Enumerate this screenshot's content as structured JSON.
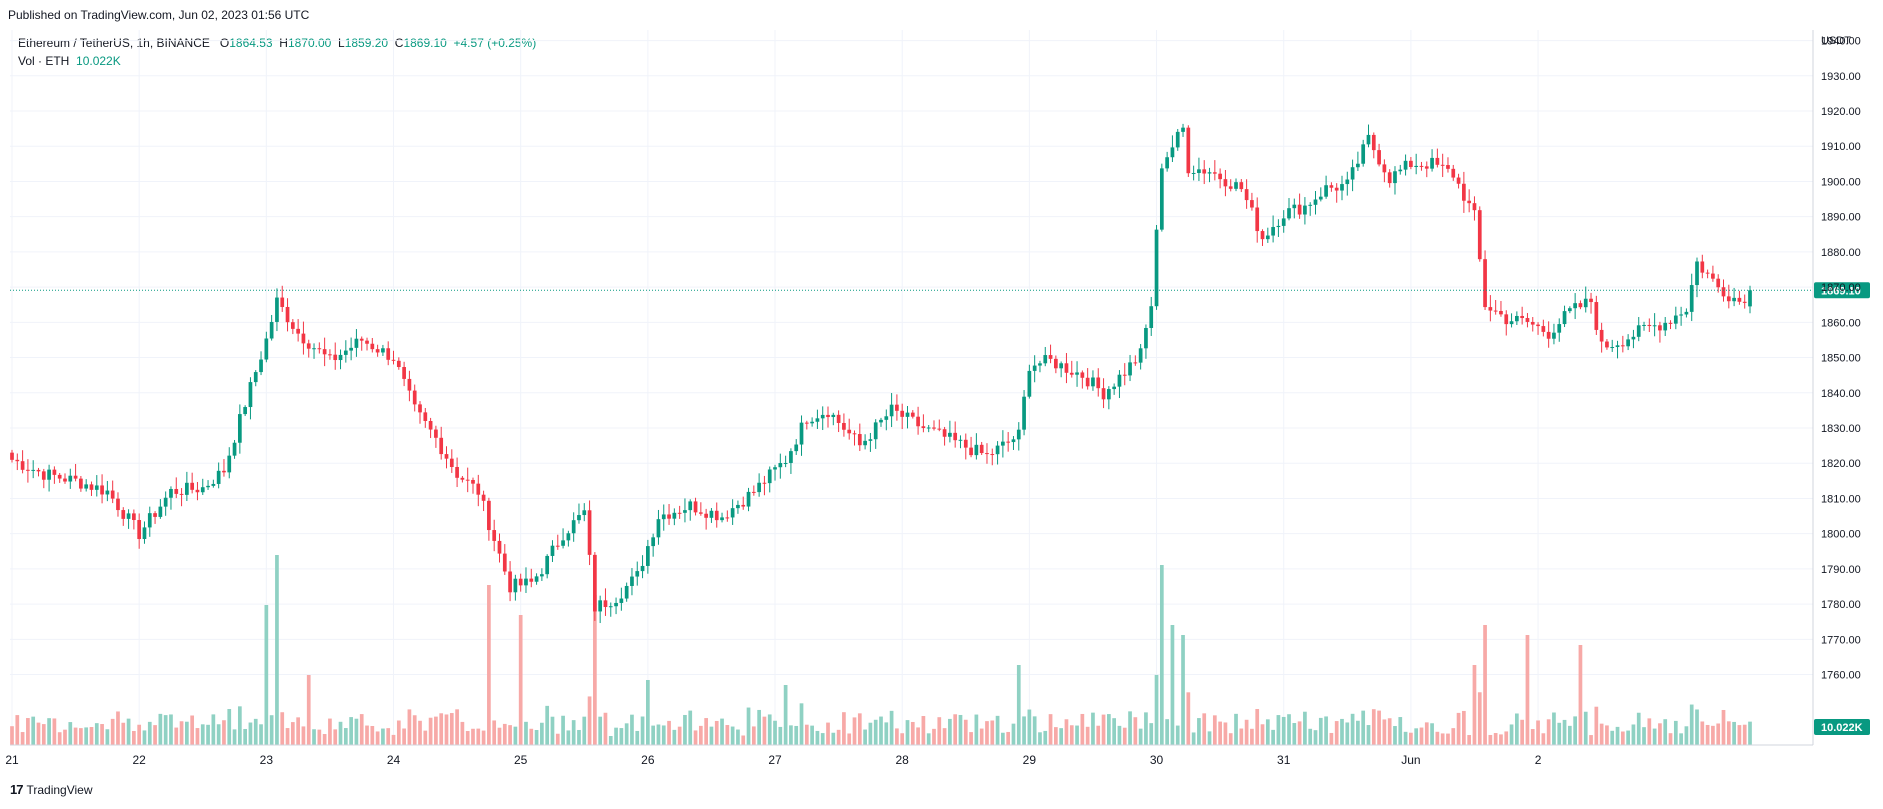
{
  "header": {
    "published": "Published on TradingView.com, Jun 02, 2023 01:56 UTC"
  },
  "legend": {
    "symbol": "Ethereum / TetherUS, 1h, BINANCE",
    "o_label": "O",
    "o_value": "1864.53",
    "h_label": "H",
    "h_value": "1870.00",
    "l_label": "L",
    "l_value": "1859.20",
    "c_label": "C",
    "c_value": "1869.10",
    "change": "+4.57 (+0.25%)",
    "vol_label": "Vol · ETH",
    "vol_value": "10.022K"
  },
  "footer": {
    "brand": "TradingView",
    "logo": "17"
  },
  "colors": {
    "up": "#089981",
    "down": "#f23645",
    "up_vol": "#8fd1c3",
    "down_vol": "#f7a9a7",
    "grid": "#f0f3fa",
    "text": "#131722"
  },
  "chart_data": {
    "type": "candlestick",
    "title": "Ethereum / TetherUS, 1h, BINANCE",
    "y_unit": "USDT",
    "ylim": [
      1740,
      1943
    ],
    "y_ticks": [
      "1940.00",
      "1930.00",
      "1920.00",
      "1910.00",
      "1900.00",
      "1890.00",
      "1880.00",
      "1870.00",
      "1860.00",
      "1850.00",
      "1840.00",
      "1830.00",
      "1820.00",
      "1810.00",
      "1800.00",
      "1790.00",
      "1780.00",
      "1770.00",
      "1760.00"
    ],
    "x_ticks": [
      "21",
      "22",
      "23",
      "24",
      "25",
      "26",
      "27",
      "28",
      "29",
      "30",
      "31",
      "Jun",
      "2"
    ],
    "last_price": "1869.10",
    "last_volume": "10.022K",
    "grid": true,
    "close_path": [
      [
        0,
        1821
      ],
      [
        6,
        1817
      ],
      [
        12,
        1815
      ],
      [
        18,
        1812
      ],
      [
        24,
        1800
      ],
      [
        30,
        1812
      ],
      [
        36,
        1813
      ],
      [
        40,
        1818
      ],
      [
        44,
        1837
      ],
      [
        48,
        1855
      ],
      [
        50,
        1866
      ],
      [
        54,
        1857
      ],
      [
        60,
        1849
      ],
      [
        66,
        1855
      ],
      [
        72,
        1850
      ],
      [
        76,
        1835
      ],
      [
        80,
        1827
      ],
      [
        84,
        1817
      ],
      [
        88,
        1812
      ],
      [
        90,
        1803
      ],
      [
        94,
        1785
      ],
      [
        98,
        1786
      ],
      [
        100,
        1790
      ],
      [
        104,
        1800
      ],
      [
        108,
        1806
      ],
      [
        110,
        1779
      ],
      [
        114,
        1782
      ],
      [
        118,
        1788
      ],
      [
        122,
        1805
      ],
      [
        128,
        1808
      ],
      [
        134,
        1805
      ],
      [
        140,
        1812
      ],
      [
        146,
        1821
      ],
      [
        150,
        1833
      ],
      [
        154,
        1835
      ],
      [
        160,
        1825
      ],
      [
        166,
        1835
      ],
      [
        172,
        1830
      ],
      [
        178,
        1826
      ],
      [
        184,
        1822
      ],
      [
        190,
        1828
      ],
      [
        192,
        1848
      ],
      [
        196,
        1849
      ],
      [
        202,
        1845
      ],
      [
        206,
        1840
      ],
      [
        210,
        1846
      ],
      [
        213,
        1851
      ],
      [
        215,
        1865
      ],
      [
        217,
        1905
      ],
      [
        219,
        1910
      ],
      [
        221,
        1915
      ],
      [
        222,
        1904
      ],
      [
        226,
        1903
      ],
      [
        232,
        1898
      ],
      [
        236,
        1884
      ],
      [
        240,
        1891
      ],
      [
        244,
        1893
      ],
      [
        248,
        1898
      ],
      [
        252,
        1899
      ],
      [
        256,
        1912
      ],
      [
        260,
        1901
      ],
      [
        264,
        1905
      ],
      [
        268,
        1905
      ],
      [
        272,
        1902
      ],
      [
        276,
        1890
      ],
      [
        278,
        1865
      ],
      [
        282,
        1861
      ],
      [
        286,
        1860
      ],
      [
        290,
        1857
      ],
      [
        294,
        1863
      ],
      [
        298,
        1866
      ],
      [
        300,
        1853
      ],
      [
        304,
        1855
      ],
      [
        308,
        1858
      ],
      [
        312,
        1860
      ],
      [
        316,
        1864
      ],
      [
        318,
        1877
      ],
      [
        322,
        1870
      ],
      [
        326,
        1866
      ],
      [
        328,
        1869
      ]
    ],
    "volume_notes": "volume bars under each candle; spikes at bars ~50 (23rd), ~90, ~96, ~110, ~217 (29th), ~278 (31st)"
  }
}
